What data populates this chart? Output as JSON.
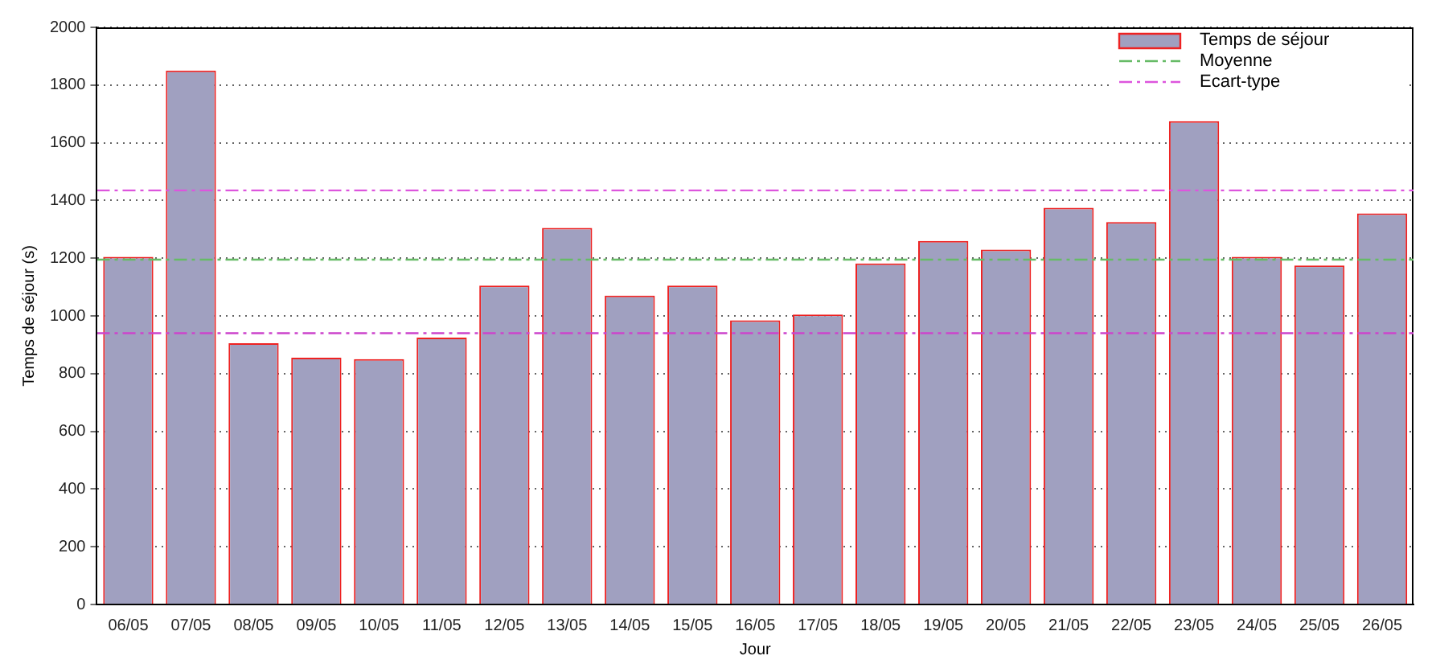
{
  "chart_data": {
    "type": "bar",
    "xlabel": "Jour",
    "ylabel": "Temps de séjour (s)",
    "categories": [
      "06/05",
      "07/05",
      "08/05",
      "09/05",
      "10/05",
      "11/05",
      "12/05",
      "13/05",
      "14/05",
      "15/05",
      "16/05",
      "17/05",
      "18/05",
      "19/05",
      "20/05",
      "21/05",
      "22/05",
      "23/05",
      "24/05",
      "25/05",
      "26/05"
    ],
    "series": [
      {
        "name": "Temps de séjour",
        "color": "#a0a0c0",
        "values": [
          1205,
          1850,
          905,
          855,
          850,
          925,
          1105,
          1305,
          1070,
          1105,
          985,
          1005,
          1182,
          1260,
          1230,
          1375,
          1325,
          1675,
          1205,
          1175,
          1355
        ]
      }
    ],
    "ref_lines": [
      {
        "axis": "y",
        "value": 1195,
        "label": "Moyenne",
        "color": "#66bb66",
        "line_style": "dashdot"
      },
      {
        "axis": "y",
        "value": 1435,
        "label": "Ecart-type",
        "color": "#dd55dd",
        "line_style": "dashdot"
      },
      {
        "axis": "y",
        "value": 940,
        "label": null,
        "color": "#cc44cc",
        "line_style": "dashdot"
      }
    ],
    "ylim": [
      0,
      2000
    ],
    "yticks": [
      0,
      200,
      400,
      600,
      800,
      1000,
      1200,
      1400,
      1600,
      1800,
      2000
    ],
    "grid": "y",
    "legend": "top right"
  }
}
